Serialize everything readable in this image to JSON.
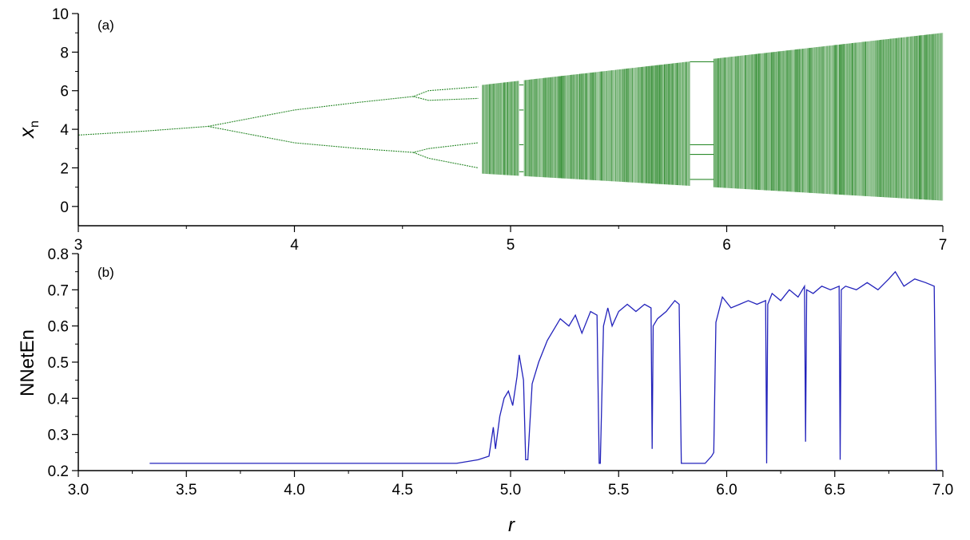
{
  "chart_data": [
    {
      "type": "scatter",
      "panel_label": "(a)",
      "ylabel_main": "x",
      "ylabel_sub": "n",
      "xlabel": "",
      "xlim": [
        3,
        7
      ],
      "ylim": [
        -1,
        10
      ],
      "x_ticks": [
        "3",
        "4",
        "5",
        "6",
        "7"
      ],
      "y_ticks": [
        "0",
        "2",
        "4",
        "6",
        "8",
        "10"
      ],
      "color": "#2e8b2e",
      "series": [
        {
          "x": [
            3.0,
            3.3,
            3.6,
            3.6,
            4.0,
            4.0,
            4.3,
            4.3,
            4.55,
            4.55,
            4.62,
            4.62,
            4.62,
            4.62,
            4.85,
            4.85,
            4.85,
            4.85
          ],
          "y": [
            3.7,
            3.9,
            4.15,
            4.15,
            5.0,
            3.3,
            5.4,
            3.0,
            5.7,
            2.8,
            6.0,
            5.5,
            3.0,
            2.5,
            6.2,
            5.6,
            3.3,
            2.0
          ]
        }
      ],
      "chaotic_band": {
        "x": [
          4.87,
          7.0
        ],
        "upper": [
          6.3,
          9.0
        ],
        "lower": [
          1.7,
          0.3
        ]
      },
      "windows": [
        {
          "x": [
            5.04,
            5.06
          ],
          "levels": [
            6.3,
            5.0,
            3.2,
            1.8
          ]
        },
        {
          "x": [
            5.83,
            5.94
          ],
          "levels": [
            7.5,
            3.2,
            2.7,
            1.4
          ]
        }
      ]
    },
    {
      "type": "line",
      "panel_label": "(b)",
      "xlabel": "r",
      "ylabel": "NNetEn",
      "xlim": [
        3.0,
        7.0
      ],
      "ylim": [
        0.2,
        0.8
      ],
      "x_ticks": [
        "3.0",
        "3.5",
        "4.0",
        "4.5",
        "5.0",
        "5.5",
        "6.0",
        "6.5",
        "7.0"
      ],
      "y_ticks": [
        "0.2",
        "0.3",
        "0.4",
        "0.5",
        "0.6",
        "0.7",
        "0.8"
      ],
      "color": "#2222bb",
      "x": [
        3.33,
        3.5,
        4.0,
        4.5,
        4.75,
        4.85,
        4.9,
        4.92,
        4.93,
        4.95,
        4.97,
        4.99,
        5.01,
        5.03,
        5.04,
        5.06,
        5.07,
        5.08,
        5.1,
        5.13,
        5.17,
        5.2,
        5.23,
        5.27,
        5.3,
        5.33,
        5.37,
        5.4,
        5.41,
        5.415,
        5.43,
        5.45,
        5.47,
        5.5,
        5.54,
        5.58,
        5.62,
        5.65,
        5.655,
        5.66,
        5.68,
        5.72,
        5.76,
        5.78,
        5.79,
        5.85,
        5.9,
        5.93,
        5.94,
        5.95,
        5.98,
        6.02,
        6.06,
        6.1,
        6.14,
        6.18,
        6.185,
        6.19,
        6.21,
        6.25,
        6.29,
        6.33,
        6.36,
        6.365,
        6.37,
        6.4,
        6.44,
        6.48,
        6.52,
        6.525,
        6.53,
        6.55,
        6.6,
        6.65,
        6.7,
        6.75,
        6.78,
        6.82,
        6.87,
        6.92,
        6.96,
        6.97
      ],
      "y": [
        0.22,
        0.22,
        0.22,
        0.22,
        0.22,
        0.23,
        0.24,
        0.32,
        0.26,
        0.35,
        0.4,
        0.42,
        0.38,
        0.46,
        0.52,
        0.45,
        0.23,
        0.23,
        0.44,
        0.5,
        0.56,
        0.59,
        0.62,
        0.6,
        0.63,
        0.58,
        0.64,
        0.63,
        0.22,
        0.22,
        0.6,
        0.65,
        0.6,
        0.64,
        0.66,
        0.64,
        0.66,
        0.65,
        0.26,
        0.6,
        0.62,
        0.64,
        0.67,
        0.66,
        0.22,
        0.22,
        0.22,
        0.24,
        0.25,
        0.61,
        0.68,
        0.65,
        0.66,
        0.67,
        0.66,
        0.67,
        0.22,
        0.66,
        0.69,
        0.67,
        0.7,
        0.68,
        0.71,
        0.28,
        0.7,
        0.69,
        0.71,
        0.7,
        0.71,
        0.23,
        0.7,
        0.71,
        0.7,
        0.72,
        0.7,
        0.73,
        0.75,
        0.71,
        0.73,
        0.72,
        0.71,
        0.2
      ]
    }
  ]
}
